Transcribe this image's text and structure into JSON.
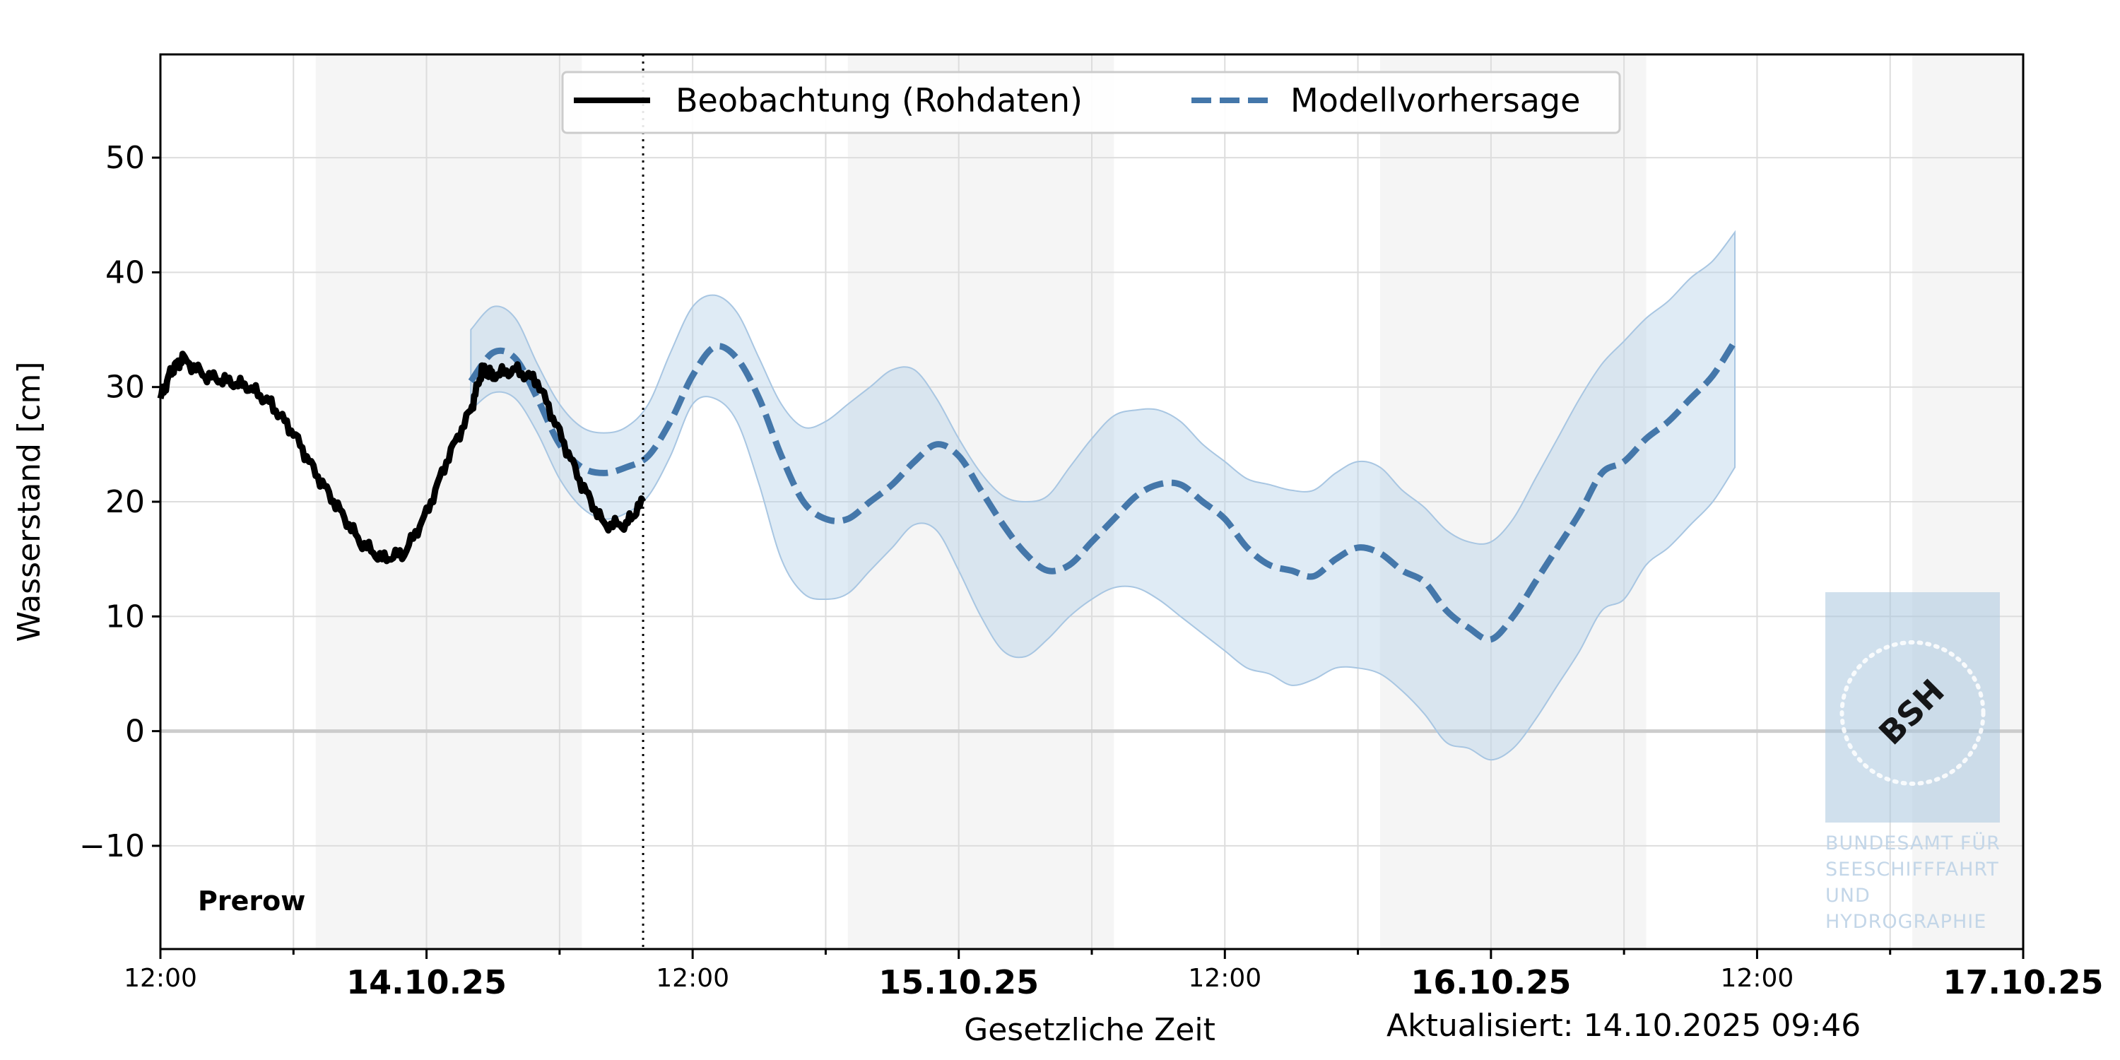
{
  "chart_data": {
    "type": "line",
    "ylabel": "Wasserstand [cm]",
    "xlabel": "Gesetzliche Zeit",
    "station": "Prerow",
    "updated": "Aktualisiert: 14.10.2025 09:46",
    "now_time": "2025-10-14T09:46",
    "x_range": [
      "2025-10-13T12:00",
      "2025-10-17T00:00"
    ],
    "ylim": [
      -19,
      59
    ],
    "yticks": [
      {
        "value": -10,
        "label": "−10"
      },
      {
        "value": 0,
        "label": "0"
      },
      {
        "value": 10,
        "label": "10"
      },
      {
        "value": 20,
        "label": "20"
      },
      {
        "value": 30,
        "label": "30"
      },
      {
        "value": 40,
        "label": "40"
      },
      {
        "value": 50,
        "label": "50"
      }
    ],
    "xticks": [
      {
        "time": "2025-10-13T12:00",
        "label": "12:00",
        "style": "time"
      },
      {
        "time": "2025-10-14T00:00",
        "label": "14.10.25",
        "style": "date"
      },
      {
        "time": "2025-10-14T12:00",
        "label": "12:00",
        "style": "time"
      },
      {
        "time": "2025-10-15T00:00",
        "label": "15.10.25",
        "style": "date"
      },
      {
        "time": "2025-10-15T12:00",
        "label": "12:00",
        "style": "time"
      },
      {
        "time": "2025-10-16T00:00",
        "label": "16.10.25",
        "style": "date"
      },
      {
        "time": "2025-10-16T12:00",
        "label": "12:00",
        "style": "time"
      },
      {
        "time": "2025-10-17T00:00",
        "label": "17.10.25",
        "style": "date"
      }
    ],
    "night_bands": [
      [
        "2025-10-13T19:00",
        "2025-10-14T07:00"
      ],
      [
        "2025-10-14T19:00",
        "2025-10-15T07:00"
      ],
      [
        "2025-10-15T19:00",
        "2025-10-16T07:00"
      ],
      [
        "2025-10-16T19:00",
        "2025-10-17T00:00"
      ]
    ],
    "grid": true,
    "legend_position": "top-center",
    "series": [
      {
        "name": "Beobachtung (Rohdaten)",
        "style": "solid",
        "color": "#000000",
        "points": [
          [
            "2025-10-13T12:00",
            29
          ],
          [
            "2025-10-13T12:30",
            31.5
          ],
          [
            "2025-10-13T13:00",
            32.5
          ],
          [
            "2025-10-13T14:00",
            31
          ],
          [
            "2025-10-13T15:00",
            30.5
          ],
          [
            "2025-10-13T16:00",
            30
          ],
          [
            "2025-10-13T17:00",
            28.5
          ],
          [
            "2025-10-13T18:00",
            26
          ],
          [
            "2025-10-13T19:00",
            22.5
          ],
          [
            "2025-10-13T20:00",
            19.5
          ],
          [
            "2025-10-13T21:00",
            16.5
          ],
          [
            "2025-10-13T22:00",
            15
          ],
          [
            "2025-10-13T23:00",
            15.5
          ],
          [
            "2025-10-14T00:00",
            19
          ],
          [
            "2025-10-14T01:00",
            24
          ],
          [
            "2025-10-14T02:00",
            28
          ],
          [
            "2025-10-14T02:30",
            31.5
          ],
          [
            "2025-10-14T03:00",
            31
          ],
          [
            "2025-10-14T04:00",
            31.5
          ],
          [
            "2025-10-14T05:00",
            30.5
          ],
          [
            "2025-10-14T06:00",
            26
          ],
          [
            "2025-10-14T07:00",
            21.5
          ],
          [
            "2025-10-14T08:00",
            18
          ],
          [
            "2025-10-14T09:00",
            18
          ],
          [
            "2025-10-14T09:46",
            20
          ]
        ]
      },
      {
        "name": "Modellvorhersage",
        "style": "dashed",
        "color": "#4477aa",
        "points": [
          [
            "2025-10-14T02:00",
            30.5
          ],
          [
            "2025-10-14T03:00",
            33
          ],
          [
            "2025-10-14T04:00",
            32.5
          ],
          [
            "2025-10-14T05:00",
            29
          ],
          [
            "2025-10-14T06:00",
            25
          ],
          [
            "2025-10-14T07:00",
            23
          ],
          [
            "2025-10-14T08:00",
            22.5
          ],
          [
            "2025-10-14T09:00",
            23
          ],
          [
            "2025-10-14T10:00",
            24
          ],
          [
            "2025-10-14T11:00",
            27
          ],
          [
            "2025-10-14T12:00",
            31
          ],
          [
            "2025-10-14T13:00",
            33.5
          ],
          [
            "2025-10-14T14:00",
            32.5
          ],
          [
            "2025-10-14T15:00",
            29
          ],
          [
            "2025-10-14T16:00",
            24
          ],
          [
            "2025-10-14T17:00",
            20
          ],
          [
            "2025-10-14T18:00",
            18.5
          ],
          [
            "2025-10-14T19:00",
            18.5
          ],
          [
            "2025-10-14T20:00",
            20
          ],
          [
            "2025-10-14T21:00",
            21.5
          ],
          [
            "2025-10-14T22:00",
            23.5
          ],
          [
            "2025-10-14T23:00",
            25
          ],
          [
            "2025-10-15T00:00",
            24
          ],
          [
            "2025-10-15T01:00",
            21
          ],
          [
            "2025-10-15T02:00",
            18
          ],
          [
            "2025-10-15T03:00",
            15.5
          ],
          [
            "2025-10-15T04:00",
            14
          ],
          [
            "2025-10-15T05:00",
            14.5
          ],
          [
            "2025-10-15T06:00",
            16.5
          ],
          [
            "2025-10-15T07:00",
            18.5
          ],
          [
            "2025-10-15T08:00",
            20.5
          ],
          [
            "2025-10-15T09:00",
            21.5
          ],
          [
            "2025-10-15T10:00",
            21.5
          ],
          [
            "2025-10-15T11:00",
            20
          ],
          [
            "2025-10-15T12:00",
            18.5
          ],
          [
            "2025-10-15T13:00",
            16
          ],
          [
            "2025-10-15T14:00",
            14.5
          ],
          [
            "2025-10-15T15:00",
            14
          ],
          [
            "2025-10-15T16:00",
            13.5
          ],
          [
            "2025-10-15T17:00",
            15
          ],
          [
            "2025-10-15T18:00",
            16
          ],
          [
            "2025-10-15T19:00",
            15.5
          ],
          [
            "2025-10-15T20:00",
            14
          ],
          [
            "2025-10-15T21:00",
            13
          ],
          [
            "2025-10-15T22:00",
            10.5
          ],
          [
            "2025-10-15T23:00",
            9
          ],
          [
            "2025-10-16T00:00",
            8
          ],
          [
            "2025-10-16T01:00",
            10
          ],
          [
            "2025-10-16T02:00",
            13
          ],
          [
            "2025-10-16T03:00",
            16
          ],
          [
            "2025-10-16T04:00",
            19
          ],
          [
            "2025-10-16T05:00",
            22.5
          ],
          [
            "2025-10-16T06:00",
            23.5
          ],
          [
            "2025-10-16T07:00",
            25.5
          ],
          [
            "2025-10-16T08:00",
            27
          ],
          [
            "2025-10-16T09:00",
            29
          ],
          [
            "2025-10-16T10:00",
            31
          ],
          [
            "2025-10-16T11:00",
            34
          ]
        ]
      },
      {
        "name": "",
        "style": "band",
        "color": "#b9d2e8",
        "upper": [
          [
            "2025-10-14T02:00",
            35
          ],
          [
            "2025-10-14T03:00",
            37
          ],
          [
            "2025-10-14T04:00",
            36
          ],
          [
            "2025-10-14T05:00",
            32
          ],
          [
            "2025-10-14T06:00",
            28.5
          ],
          [
            "2025-10-14T07:00",
            26.5
          ],
          [
            "2025-10-14T08:00",
            26
          ],
          [
            "2025-10-14T09:00",
            26.5
          ],
          [
            "2025-10-14T10:00",
            28.5
          ],
          [
            "2025-10-14T11:00",
            33
          ],
          [
            "2025-10-14T12:00",
            37
          ],
          [
            "2025-10-14T13:00",
            38
          ],
          [
            "2025-10-14T14:00",
            36.5
          ],
          [
            "2025-10-14T15:00",
            32.5
          ],
          [
            "2025-10-14T16:00",
            28.5
          ],
          [
            "2025-10-14T17:00",
            26.5
          ],
          [
            "2025-10-14T18:00",
            27
          ],
          [
            "2025-10-14T19:00",
            28.5
          ],
          [
            "2025-10-14T20:00",
            30
          ],
          [
            "2025-10-14T21:00",
            31.5
          ],
          [
            "2025-10-14T22:00",
            31.5
          ],
          [
            "2025-10-14T23:00",
            29
          ],
          [
            "2025-10-15T00:00",
            25.5
          ],
          [
            "2025-10-15T01:00",
            22.5
          ],
          [
            "2025-10-15T02:00",
            20.5
          ],
          [
            "2025-10-15T03:00",
            20
          ],
          [
            "2025-10-15T04:00",
            20.5
          ],
          [
            "2025-10-15T05:00",
            23
          ],
          [
            "2025-10-15T06:00",
            25.5
          ],
          [
            "2025-10-15T07:00",
            27.5
          ],
          [
            "2025-10-15T08:00",
            28
          ],
          [
            "2025-10-15T09:00",
            28
          ],
          [
            "2025-10-15T10:00",
            27
          ],
          [
            "2025-10-15T11:00",
            25
          ],
          [
            "2025-10-15T12:00",
            23.5
          ],
          [
            "2025-10-15T13:00",
            22
          ],
          [
            "2025-10-15T14:00",
            21.5
          ],
          [
            "2025-10-15T15:00",
            21
          ],
          [
            "2025-10-15T16:00",
            21
          ],
          [
            "2025-10-15T17:00",
            22.5
          ],
          [
            "2025-10-15T18:00",
            23.5
          ],
          [
            "2025-10-15T19:00",
            23
          ],
          [
            "2025-10-15T20:00",
            21
          ],
          [
            "2025-10-15T21:00",
            19.5
          ],
          [
            "2025-10-15T22:00",
            17.5
          ],
          [
            "2025-10-15T23:00",
            16.5
          ],
          [
            "2025-10-16T00:00",
            16.5
          ],
          [
            "2025-10-16T01:00",
            18.5
          ],
          [
            "2025-10-16T02:00",
            22
          ],
          [
            "2025-10-16T03:00",
            25.5
          ],
          [
            "2025-10-16T04:00",
            29
          ],
          [
            "2025-10-16T05:00",
            32
          ],
          [
            "2025-10-16T06:00",
            34
          ],
          [
            "2025-10-16T07:00",
            36
          ],
          [
            "2025-10-16T08:00",
            37.5
          ],
          [
            "2025-10-16T09:00",
            39.5
          ],
          [
            "2025-10-16T10:00",
            41
          ],
          [
            "2025-10-16T11:00",
            43.5
          ]
        ],
        "lower": [
          [
            "2025-10-14T02:00",
            28
          ],
          [
            "2025-10-14T03:00",
            29.5
          ],
          [
            "2025-10-14T04:00",
            29
          ],
          [
            "2025-10-14T05:00",
            26
          ],
          [
            "2025-10-14T06:00",
            22
          ],
          [
            "2025-10-14T07:00",
            19.5
          ],
          [
            "2025-10-14T08:00",
            18.5
          ],
          [
            "2025-10-14T09:00",
            19
          ],
          [
            "2025-10-14T10:00",
            20.5
          ],
          [
            "2025-10-14T11:00",
            24
          ],
          [
            "2025-10-14T12:00",
            28.5
          ],
          [
            "2025-10-14T13:00",
            29
          ],
          [
            "2025-10-14T14:00",
            27
          ],
          [
            "2025-10-14T15:00",
            21.5
          ],
          [
            "2025-10-14T16:00",
            15
          ],
          [
            "2025-10-14T17:00",
            12
          ],
          [
            "2025-10-14T18:00",
            11.5
          ],
          [
            "2025-10-14T19:00",
            12
          ],
          [
            "2025-10-14T20:00",
            14
          ],
          [
            "2025-10-14T21:00",
            16
          ],
          [
            "2025-10-14T22:00",
            18
          ],
          [
            "2025-10-14T23:00",
            17.5
          ],
          [
            "2025-10-15T00:00",
            14
          ],
          [
            "2025-10-15T01:00",
            10
          ],
          [
            "2025-10-15T02:00",
            7
          ],
          [
            "2025-10-15T03:00",
            6.5
          ],
          [
            "2025-10-15T04:00",
            8
          ],
          [
            "2025-10-15T05:00",
            10
          ],
          [
            "2025-10-15T06:00",
            11.5
          ],
          [
            "2025-10-15T07:00",
            12.5
          ],
          [
            "2025-10-15T08:00",
            12.5
          ],
          [
            "2025-10-15T09:00",
            11.5
          ],
          [
            "2025-10-15T10:00",
            10
          ],
          [
            "2025-10-15T11:00",
            8.5
          ],
          [
            "2025-10-15T12:00",
            7
          ],
          [
            "2025-10-15T13:00",
            5.5
          ],
          [
            "2025-10-15T14:00",
            5
          ],
          [
            "2025-10-15T15:00",
            4
          ],
          [
            "2025-10-15T16:00",
            4.5
          ],
          [
            "2025-10-15T17:00",
            5.5
          ],
          [
            "2025-10-15T18:00",
            5.5
          ],
          [
            "2025-10-15T19:00",
            5
          ],
          [
            "2025-10-15T20:00",
            3.5
          ],
          [
            "2025-10-15T21:00",
            1.5
          ],
          [
            "2025-10-15T22:00",
            -1
          ],
          [
            "2025-10-15T23:00",
            -1.5
          ],
          [
            "2025-10-16T00:00",
            -2.5
          ],
          [
            "2025-10-16T01:00",
            -1.5
          ],
          [
            "2025-10-16T02:00",
            1
          ],
          [
            "2025-10-16T03:00",
            4
          ],
          [
            "2025-10-16T04:00",
            7
          ],
          [
            "2025-10-16T05:00",
            10.5
          ],
          [
            "2025-10-16T06:00",
            11.5
          ],
          [
            "2025-10-16T07:00",
            14.5
          ],
          [
            "2025-10-16T08:00",
            16
          ],
          [
            "2025-10-16T09:00",
            18
          ],
          [
            "2025-10-16T10:00",
            20
          ],
          [
            "2025-10-16T11:00",
            23
          ]
        ]
      }
    ]
  },
  "logo": {
    "mark": "BSH",
    "lines": [
      "BUNDESAMT FÜR",
      "SEESCHIFFFAHRT",
      "UND",
      "HYDROGRAPHIE"
    ]
  }
}
